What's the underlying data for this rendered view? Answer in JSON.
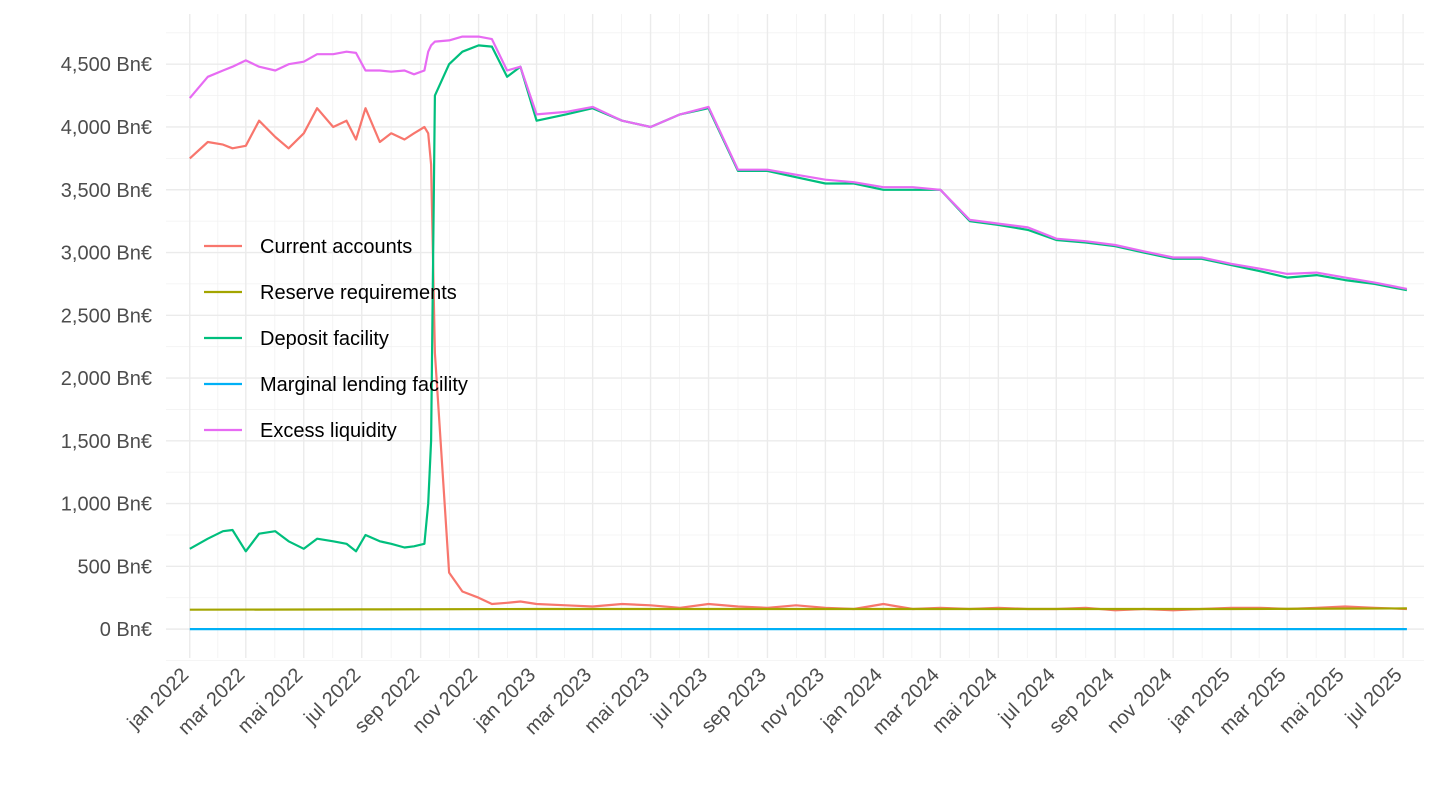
{
  "chart_data": {
    "type": "line",
    "title": "",
    "xlabel": "",
    "ylabel": "",
    "x_range": [
      "2021-12-07",
      "2025-07-23"
    ],
    "ylim": [
      -230,
      4900
    ],
    "grid": true,
    "legend_position": "left",
    "y_ticks": [
      {
        "value": 0,
        "label": "0 Bn€"
      },
      {
        "value": 500,
        "label": "500 Bn€"
      },
      {
        "value": 1000,
        "label": "1,000 Bn€"
      },
      {
        "value": 1500,
        "label": "1,500 Bn€"
      },
      {
        "value": 2000,
        "label": "2,000 Bn€"
      },
      {
        "value": 2500,
        "label": "2,500 Bn€"
      },
      {
        "value": 3000,
        "label": "3,000 Bn€"
      },
      {
        "value": 3500,
        "label": "3,500 Bn€"
      },
      {
        "value": 4000,
        "label": "4,000 Bn€"
      },
      {
        "value": 4500,
        "label": "4,500 Bn€"
      }
    ],
    "x_ticks": [
      {
        "value": "2022-01-01",
        "label": "jan 2022"
      },
      {
        "value": "2022-03-01",
        "label": "mar 2022"
      },
      {
        "value": "2022-05-01",
        "label": "mai 2022"
      },
      {
        "value": "2022-07-01",
        "label": "jul 2022"
      },
      {
        "value": "2022-09-01",
        "label": "sep 2022"
      },
      {
        "value": "2022-11-01",
        "label": "nov 2022"
      },
      {
        "value": "2023-01-01",
        "label": "jan 2023"
      },
      {
        "value": "2023-03-01",
        "label": "mar 2023"
      },
      {
        "value": "2023-05-01",
        "label": "mai 2023"
      },
      {
        "value": "2023-07-01",
        "label": "jul 2023"
      },
      {
        "value": "2023-09-01",
        "label": "sep 2023"
      },
      {
        "value": "2023-11-01",
        "label": "nov 2023"
      },
      {
        "value": "2024-01-01",
        "label": "jan 2024"
      },
      {
        "value": "2024-03-01",
        "label": "mar 2024"
      },
      {
        "value": "2024-05-01",
        "label": "mai 2024"
      },
      {
        "value": "2024-07-01",
        "label": "jul 2024"
      },
      {
        "value": "2024-09-01",
        "label": "sep 2024"
      },
      {
        "value": "2024-11-01",
        "label": "nov 2024"
      },
      {
        "value": "2025-01-01",
        "label": "jan 2025"
      },
      {
        "value": "2025-03-01",
        "label": "mar 2025"
      },
      {
        "value": "2025-05-01",
        "label": "mai 2025"
      },
      {
        "value": "2025-07-01",
        "label": "jul 2025"
      }
    ],
    "series": [
      {
        "name": "Current accounts",
        "color": "#F8766D",
        "x": [
          "2022-01-01",
          "2022-01-20",
          "2022-02-05",
          "2022-02-15",
          "2022-03-01",
          "2022-03-15",
          "2022-04-01",
          "2022-04-15",
          "2022-05-01",
          "2022-05-15",
          "2022-06-01",
          "2022-06-15",
          "2022-06-25",
          "2022-07-05",
          "2022-07-20",
          "2022-08-01",
          "2022-08-15",
          "2022-08-25",
          "2022-09-05",
          "2022-09-09",
          "2022-09-12",
          "2022-09-16",
          "2022-10-01",
          "2022-10-15",
          "2022-11-01",
          "2022-11-15",
          "2022-12-01",
          "2022-12-15",
          "2023-01-01",
          "2023-02-01",
          "2023-03-01",
          "2023-04-01",
          "2023-05-01",
          "2023-06-01",
          "2023-07-01",
          "2023-08-01",
          "2023-09-01",
          "2023-10-01",
          "2023-11-01",
          "2023-12-01",
          "2024-01-01",
          "2024-02-01",
          "2024-03-01",
          "2024-04-01",
          "2024-05-01",
          "2024-06-01",
          "2024-07-01",
          "2024-08-01",
          "2024-09-01",
          "2024-10-01",
          "2024-11-01",
          "2024-12-01",
          "2025-01-01",
          "2025-02-01",
          "2025-03-01",
          "2025-04-01",
          "2025-05-01",
          "2025-06-01",
          "2025-07-05"
        ],
        "values": [
          3750,
          3880,
          3860,
          3830,
          3850,
          4050,
          3920,
          3830,
          3950,
          4150,
          4000,
          4050,
          3900,
          4150,
          3880,
          3950,
          3900,
          3950,
          4000,
          3950,
          3700,
          2200,
          450,
          300,
          250,
          200,
          210,
          220,
          200,
          190,
          180,
          200,
          190,
          170,
          200,
          180,
          170,
          190,
          170,
          160,
          200,
          160,
          170,
          160,
          170,
          160,
          160,
          170,
          150,
          160,
          150,
          160,
          170,
          170,
          160,
          170,
          180,
          170,
          160
        ]
      },
      {
        "name": "Reserve requirements",
        "color": "#A3A500",
        "x": [
          "2022-01-01",
          "2022-07-01",
          "2023-01-01",
          "2023-07-01",
          "2024-01-01",
          "2024-07-01",
          "2025-01-01",
          "2025-07-05"
        ],
        "values": [
          155,
          157,
          160,
          160,
          160,
          160,
          160,
          165
        ]
      },
      {
        "name": "Deposit facility",
        "color": "#00BF7D",
        "x": [
          "2022-01-01",
          "2022-01-20",
          "2022-02-05",
          "2022-02-15",
          "2022-03-01",
          "2022-03-15",
          "2022-04-01",
          "2022-04-15",
          "2022-05-01",
          "2022-05-15",
          "2022-06-01",
          "2022-06-15",
          "2022-06-25",
          "2022-07-05",
          "2022-07-20",
          "2022-08-01",
          "2022-08-15",
          "2022-08-25",
          "2022-09-05",
          "2022-09-09",
          "2022-09-12",
          "2022-09-16",
          "2022-10-01",
          "2022-10-15",
          "2022-11-01",
          "2022-11-15",
          "2022-12-01",
          "2022-12-15",
          "2023-01-01",
          "2023-02-01",
          "2023-03-01",
          "2023-04-01",
          "2023-05-01",
          "2023-06-01",
          "2023-07-01",
          "2023-08-01",
          "2023-09-01",
          "2023-10-01",
          "2023-11-01",
          "2023-12-01",
          "2024-01-01",
          "2024-02-01",
          "2024-03-01",
          "2024-04-01",
          "2024-05-01",
          "2024-06-01",
          "2024-07-01",
          "2024-08-01",
          "2024-09-01",
          "2024-10-01",
          "2024-11-01",
          "2024-12-01",
          "2025-01-01",
          "2025-02-01",
          "2025-03-01",
          "2025-04-01",
          "2025-05-01",
          "2025-06-01",
          "2025-07-05"
        ],
        "values": [
          640,
          720,
          780,
          790,
          620,
          760,
          780,
          700,
          640,
          720,
          700,
          680,
          620,
          750,
          700,
          680,
          650,
          660,
          680,
          1000,
          1500,
          4250,
          4500,
          4600,
          4650,
          4640,
          4400,
          4480,
          4050,
          4100,
          4150,
          4050,
          4000,
          4100,
          4150,
          3650,
          3650,
          3600,
          3550,
          3550,
          3500,
          3500,
          3500,
          3250,
          3220,
          3180,
          3100,
          3080,
          3050,
          3000,
          2950,
          2950,
          2900,
          2850,
          2800,
          2820,
          2780,
          2750,
          2700
        ]
      },
      {
        "name": "Marginal lending facility",
        "color": "#00B0F6",
        "x": [
          "2022-01-01",
          "2025-07-05"
        ],
        "values": [
          0,
          0
        ]
      },
      {
        "name": "Excess liquidity",
        "color": "#E76BF3",
        "x": [
          "2022-01-01",
          "2022-01-20",
          "2022-02-05",
          "2022-02-15",
          "2022-03-01",
          "2022-03-15",
          "2022-04-01",
          "2022-04-15",
          "2022-05-01",
          "2022-05-15",
          "2022-06-01",
          "2022-06-15",
          "2022-06-25",
          "2022-07-05",
          "2022-07-20",
          "2022-08-01",
          "2022-08-15",
          "2022-08-25",
          "2022-09-05",
          "2022-09-09",
          "2022-09-12",
          "2022-09-16",
          "2022-10-01",
          "2022-10-15",
          "2022-11-01",
          "2022-11-15",
          "2022-12-01",
          "2022-12-15",
          "2023-01-01",
          "2023-02-01",
          "2023-03-01",
          "2023-04-01",
          "2023-05-01",
          "2023-06-01",
          "2023-07-01",
          "2023-08-01",
          "2023-09-01",
          "2023-10-01",
          "2023-11-01",
          "2023-12-01",
          "2024-01-01",
          "2024-02-01",
          "2024-03-01",
          "2024-04-01",
          "2024-05-01",
          "2024-06-01",
          "2024-07-01",
          "2024-08-01",
          "2024-09-01",
          "2024-10-01",
          "2024-11-01",
          "2024-12-01",
          "2025-01-01",
          "2025-02-01",
          "2025-03-01",
          "2025-04-01",
          "2025-05-01",
          "2025-06-01",
          "2025-07-05"
        ],
        "values": [
          4230,
          4400,
          4450,
          4480,
          4530,
          4480,
          4450,
          4500,
          4520,
          4580,
          4580,
          4600,
          4590,
          4450,
          4450,
          4440,
          4450,
          4420,
          4450,
          4600,
          4650,
          4680,
          4690,
          4720,
          4720,
          4700,
          4450,
          4480,
          4100,
          4120,
          4160,
          4050,
          4000,
          4100,
          4160,
          3660,
          3660,
          3620,
          3580,
          3560,
          3520,
          3520,
          3500,
          3260,
          3230,
          3200,
          3110,
          3090,
          3060,
          3010,
          2960,
          2960,
          2910,
          2870,
          2830,
          2840,
          2800,
          2760,
          2710
        ]
      }
    ]
  }
}
